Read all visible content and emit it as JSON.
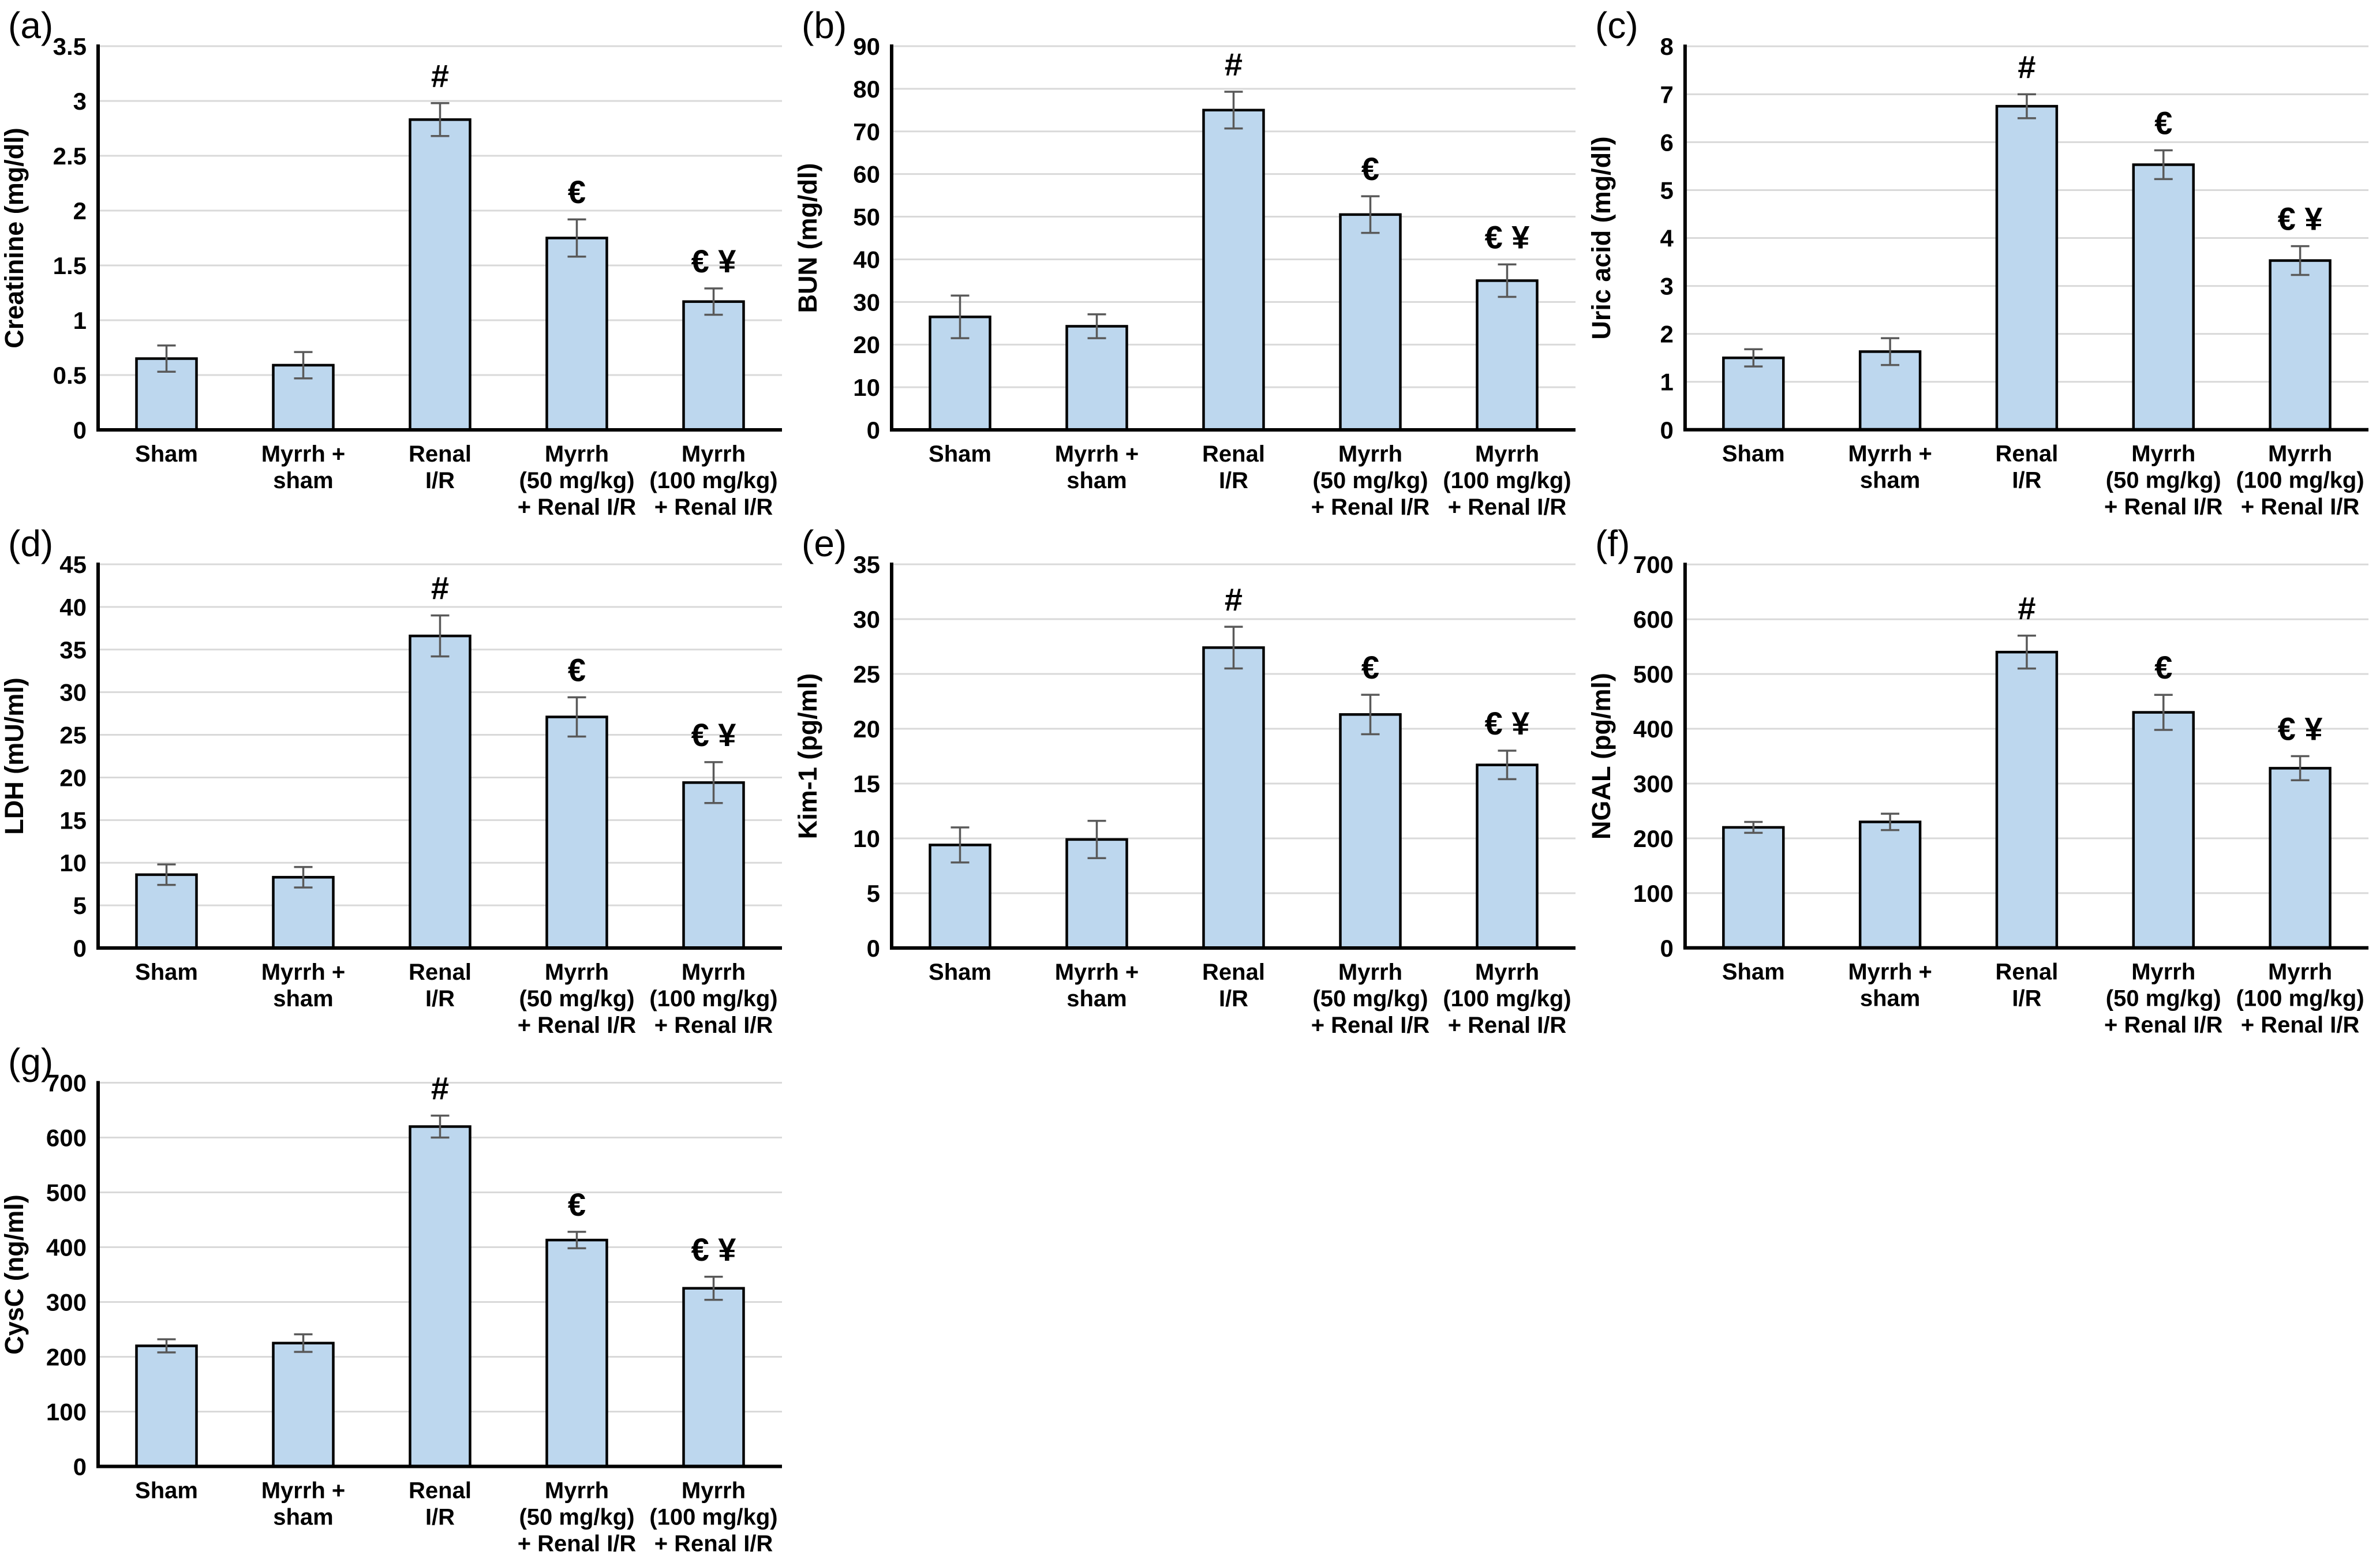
{
  "colors": {
    "bar_fill": "#BDD7EE",
    "bar_stroke": "#000000",
    "error_bar": "#595959",
    "gridline": "#D9D9D9",
    "axis": "#000000",
    "text": "#000000",
    "background": "#FFFFFF"
  },
  "layout": {
    "grid": "3 columns x 3 rows, panel g alone in last row",
    "legend": "none",
    "gridlines": "horizontal only"
  },
  "chart_data": [
    {
      "panel": "(a)",
      "type": "bar",
      "ylabel": "Creatinine (mg/dl)",
      "ylim": [
        0,
        3.5
      ],
      "ytick_step": 0.5,
      "categories": [
        "Sham",
        "Myrrh +\nsham",
        "Renal\nI/R",
        "Myrrh\n(50 mg/kg)\n+ Renal I/R",
        "Myrrh\n(100 mg/kg)\n+ Renal I/R"
      ],
      "values": [
        0.65,
        0.59,
        2.83,
        1.75,
        1.17
      ],
      "errors": [
        0.12,
        0.12,
        0.15,
        0.17,
        0.12
      ],
      "annotations": [
        "",
        "",
        "#",
        "€",
        "€ ¥"
      ]
    },
    {
      "panel": "(b)",
      "type": "bar",
      "ylabel": "BUN (mg/dl)",
      "ylim": [
        0,
        90
      ],
      "ytick_step": 10,
      "categories": [
        "Sham",
        "Myrrh +\nsham",
        "Renal\nI/R",
        "Myrrh\n(50 mg/kg)\n+ Renal I/R",
        "Myrrh\n(100 mg/kg)\n+ Renal I/R"
      ],
      "values": [
        26.5,
        24.3,
        75,
        50.5,
        35
      ],
      "errors": [
        5,
        2.8,
        4.3,
        4.3,
        3.8
      ],
      "annotations": [
        "",
        "",
        "#",
        "€",
        "€ ¥"
      ]
    },
    {
      "panel": "(c)",
      "type": "bar",
      "ylabel": "Uric acid (mg/dl)",
      "ylim": [
        0,
        8
      ],
      "ytick_step": 1,
      "categories": [
        "Sham",
        "Myrrh +\nsham",
        "Renal\nI/R",
        "Myrrh\n(50 mg/kg)\n+ Renal I/R",
        "Myrrh\n(100 mg/kg)\n+ Renal I/R"
      ],
      "values": [
        1.5,
        1.63,
        6.75,
        5.53,
        3.53
      ],
      "errors": [
        0.18,
        0.28,
        0.25,
        0.3,
        0.3
      ],
      "annotations": [
        "",
        "",
        "#",
        "€",
        "€ ¥"
      ]
    },
    {
      "panel": "(d)",
      "type": "bar",
      "ylabel": "LDH (mU/ml)",
      "ylim": [
        0,
        45
      ],
      "ytick_step": 5,
      "categories": [
        "Sham",
        "Myrrh +\nsham",
        "Renal\nI/R",
        "Myrrh\n(50 mg/kg)\n+ Renal I/R",
        "Myrrh\n(100 mg/kg)\n+ Renal I/R"
      ],
      "values": [
        8.6,
        8.3,
        36.6,
        27.1,
        19.4
      ],
      "errors": [
        1.2,
        1.2,
        2.4,
        2.3,
        2.4
      ],
      "annotations": [
        "",
        "",
        "#",
        "€",
        "€ ¥"
      ]
    },
    {
      "panel": "(e)",
      "type": "bar",
      "ylabel": "Kim-1 (pg/ml)",
      "ylim": [
        0,
        35
      ],
      "ytick_step": 5,
      "categories": [
        "Sham",
        "Myrrh +\nsham",
        "Renal\nI/R",
        "Myrrh\n(50 mg/kg)\n+ Renal I/R",
        "Myrrh\n(100 mg/kg)\n+ Renal I/R"
      ],
      "values": [
        9.4,
        9.9,
        27.4,
        21.3,
        16.7
      ],
      "errors": [
        1.6,
        1.7,
        1.9,
        1.8,
        1.3
      ],
      "annotations": [
        "",
        "",
        "#",
        "€",
        "€ ¥"
      ]
    },
    {
      "panel": "(f)",
      "type": "bar",
      "ylabel": "NGAL (pg/ml)",
      "ylim": [
        0,
        700
      ],
      "ytick_step": 100,
      "categories": [
        "Sham",
        "Myrrh +\nsham",
        "Renal\nI/R",
        "Myrrh\n(50 mg/kg)\n+ Renal I/R",
        "Myrrh\n(100 mg/kg)\n+ Renal I/R"
      ],
      "values": [
        220,
        230,
        540,
        430,
        328
      ],
      "errors": [
        10,
        15,
        30,
        32,
        22
      ],
      "annotations": [
        "",
        "",
        "#",
        "€",
        "€ ¥"
      ]
    },
    {
      "panel": "(g)",
      "type": "bar",
      "ylabel": "CysC (ng/ml)",
      "ylim": [
        0,
        700
      ],
      "ytick_step": 100,
      "categories": [
        "Sham",
        "Myrrh +\nsham",
        "Renal\nI/R",
        "Myrrh\n(50 mg/kg)\n+ Renal I/R",
        "Myrrh\n(100 mg/kg)\n+ Renal I/R"
      ],
      "values": [
        220,
        225,
        620,
        413,
        325
      ],
      "errors": [
        12,
        16,
        20,
        15,
        21
      ],
      "annotations": [
        "",
        "",
        "#",
        "€",
        "€ ¥"
      ]
    }
  ]
}
